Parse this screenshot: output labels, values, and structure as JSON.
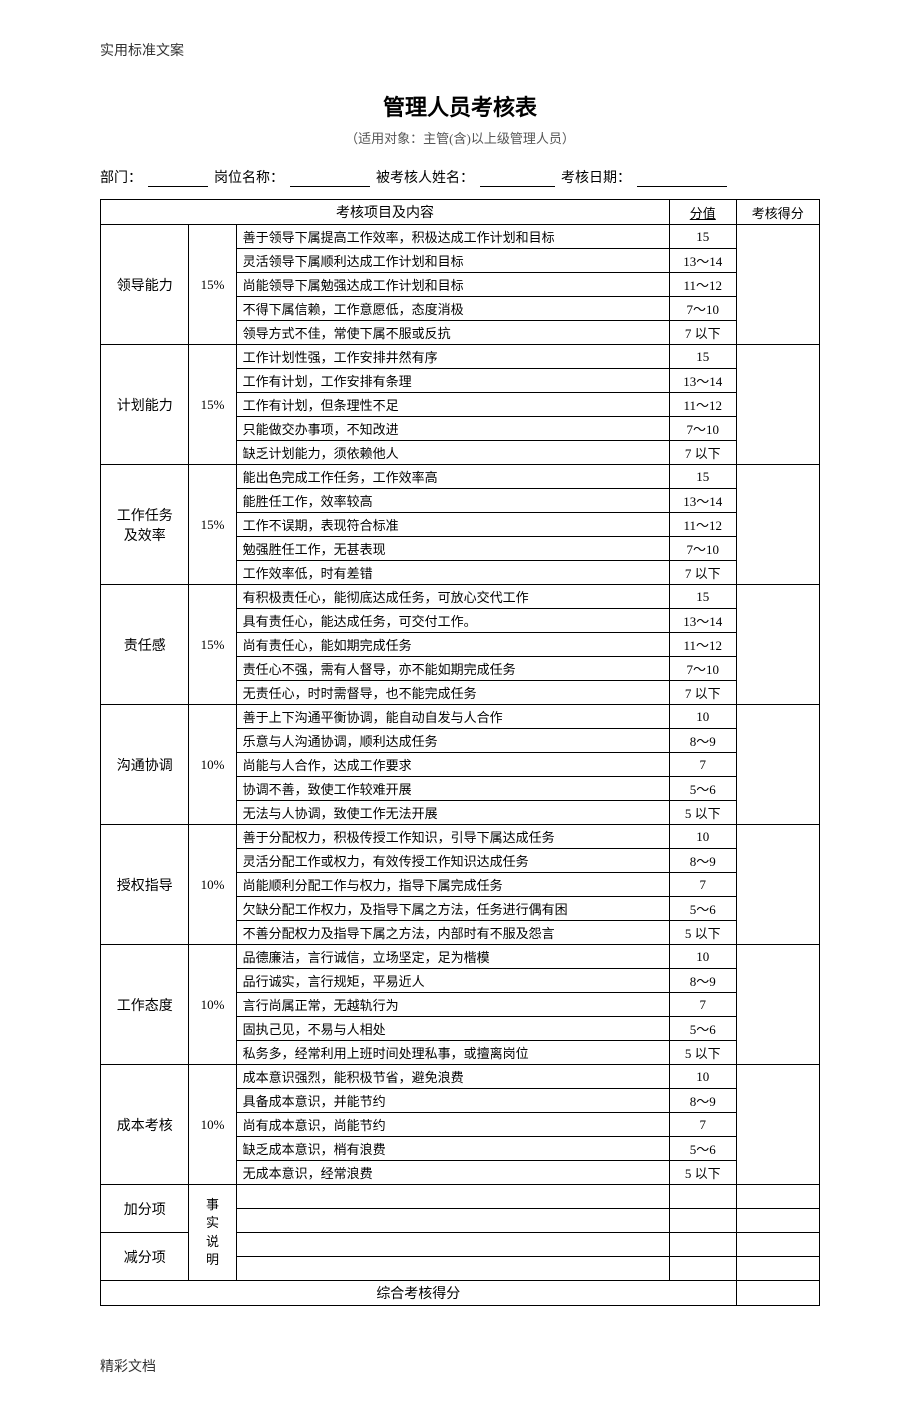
{
  "header_text": "实用标准文案",
  "footer_text": "精彩文档",
  "title": "管理人员考核表",
  "subtitle": "（适用对象：主管(含)以上级管理人员）",
  "form_fields": {
    "dept_label": "部门：",
    "position_label": "岗位名称：",
    "name_label": "被考核人姓名：",
    "date_label": "考核日期："
  },
  "table_headers": {
    "main": "考核项目及内容",
    "score": "分值",
    "result": "考核得分"
  },
  "categories": [
    {
      "name": "领导能力",
      "weight": "15%",
      "rows": [
        {
          "desc": "善于领导下属提高工作效率，积极达成工作计划和目标",
          "score": "15"
        },
        {
          "desc": "灵活领导下属顺利达成工作计划和目标",
          "score": "13～14"
        },
        {
          "desc": "尚能领导下属勉强达成工作计划和目标",
          "score": "11～12"
        },
        {
          "desc": "不得下属信赖，工作意愿低，态度消极",
          "score": "7～10"
        },
        {
          "desc": "领导方式不佳，常使下属不服或反抗",
          "score": "7 以下"
        }
      ]
    },
    {
      "name": "计划能力",
      "weight": "15%",
      "rows": [
        {
          "desc": "工作计划性强，工作安排井然有序",
          "score": "15"
        },
        {
          "desc": "工作有计划，工作安排有条理",
          "score": "13～14"
        },
        {
          "desc": "工作有计划，但条理性不足",
          "score": "11～12"
        },
        {
          "desc": "只能做交办事项，不知改进",
          "score": "7～10"
        },
        {
          "desc": "缺乏计划能力，须依赖他人",
          "score": "7 以下"
        }
      ]
    },
    {
      "name": "工作任务及效率",
      "weight": "15%",
      "rows": [
        {
          "desc": "能出色完成工作任务，工作效率高",
          "score": "15"
        },
        {
          "desc": "能胜任工作，效率较高",
          "score": "13～14"
        },
        {
          "desc": "工作不误期，表现符合标准",
          "score": "11～12"
        },
        {
          "desc": "勉强胜任工作，无甚表现",
          "score": "7～10"
        },
        {
          "desc": "工作效率低，时有差错",
          "score": "7 以下"
        }
      ]
    },
    {
      "name": "责任感",
      "weight": "15%",
      "rows": [
        {
          "desc": "有积极责任心，能彻底达成任务，可放心交代工作",
          "score": "15"
        },
        {
          "desc": "具有责任心，能达成任务，可交付工作。",
          "score": "13～14"
        },
        {
          "desc": "尚有责任心，能如期完成任务",
          "score": "11～12"
        },
        {
          "desc": "责任心不强，需有人督导，亦不能如期完成任务",
          "score": "7～10"
        },
        {
          "desc": "无责任心，时时需督导，也不能完成任务",
          "score": "7 以下"
        }
      ]
    },
    {
      "name": "沟通协调",
      "weight": "10%",
      "rows": [
        {
          "desc": "善于上下沟通平衡协调，能自动自发与人合作",
          "score": "10"
        },
        {
          "desc": "乐意与人沟通协调，顺利达成任务",
          "score": "8～9"
        },
        {
          "desc": "尚能与人合作，达成工作要求",
          "score": "7"
        },
        {
          "desc": "协调不善，致使工作较难开展",
          "score": "5～6"
        },
        {
          "desc": "无法与人协调，致使工作无法开展",
          "score": "5 以下"
        }
      ]
    },
    {
      "name": "授权指导",
      "weight": "10%",
      "rows": [
        {
          "desc": "善于分配权力，积极传授工作知识，引导下属达成任务",
          "score": "10"
        },
        {
          "desc": "灵活分配工作或权力，有效传授工作知识达成任务",
          "score": "8～9"
        },
        {
          "desc": "尚能顺利分配工作与权力，指导下属完成任务",
          "score": "7"
        },
        {
          "desc": "欠缺分配工作权力，及指导下属之方法，任务进行偶有困",
          "score": "5～6"
        },
        {
          "desc": "不善分配权力及指导下属之方法，内部时有不服及怨言",
          "score": "5 以下"
        }
      ]
    },
    {
      "name": "工作态度",
      "weight": "10%",
      "rows": [
        {
          "desc": "品德廉洁，言行诚信，立场坚定，足为楷模",
          "score": "10"
        },
        {
          "desc": "品行诚实，言行规矩，平易近人",
          "score": "8～9"
        },
        {
          "desc": "言行尚属正常，无越轨行为",
          "score": "7"
        },
        {
          "desc": "固执己见，不易与人相处",
          "score": "5～6"
        },
        {
          "desc": "私务多，经常利用上班时间处理私事，或擅离岗位",
          "score": "5 以下"
        }
      ]
    },
    {
      "name": "成本考核",
      "weight": "10%",
      "rows": [
        {
          "desc": "成本意识强烈，能积极节省，避免浪费",
          "score": "10"
        },
        {
          "desc": "具备成本意识，并能节约",
          "score": "8～9"
        },
        {
          "desc": "尚有成本意识，尚能节约",
          "score": "7"
        },
        {
          "desc": "缺乏成本意识，梢有浪费",
          "score": "5～6"
        },
        {
          "desc": "无成本意识，经常浪费",
          "score": "5 以下"
        }
      ]
    }
  ],
  "bonus": {
    "plus_label": "加分项",
    "minus_label": "减分项",
    "fact_label": "事实说明"
  },
  "total_label": "综合考核得分"
}
